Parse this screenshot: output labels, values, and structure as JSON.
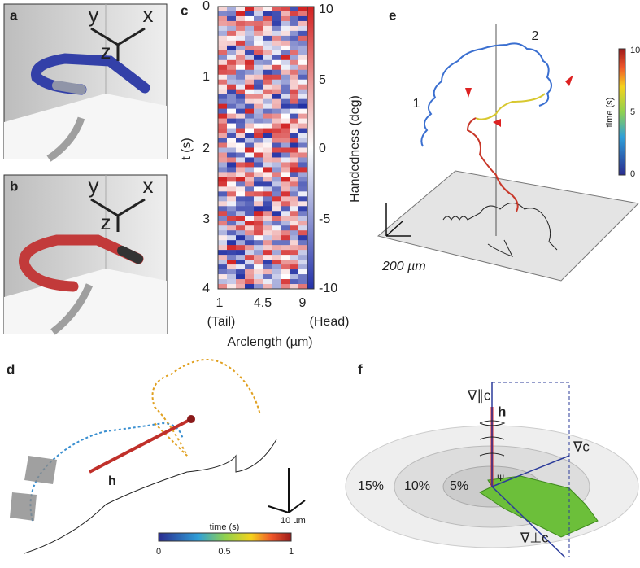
{
  "panels": {
    "a": {
      "label": "a",
      "axes": [
        "y",
        "z",
        "x"
      ]
    },
    "b": {
      "label": "b",
      "axes": [
        "y",
        "z",
        "x"
      ]
    },
    "c": {
      "label": "c",
      "y_label": "t (s)",
      "y_ticks": [
        "0",
        "1",
        "2",
        "3",
        "4"
      ],
      "x_ticks": [
        "1",
        "4.5",
        "9"
      ],
      "x_ends": [
        "(Tail)",
        "(Head)"
      ],
      "x_label": "Arclength (µm)",
      "colorbar_label": "Handedness (deg)",
      "colorbar_ticks": [
        "10",
        "5",
        "0",
        "-5",
        "-10"
      ]
    },
    "d": {
      "label": "d",
      "vector": "h",
      "scale": "10 µm",
      "colorbar_title": "time (s)",
      "colorbar_ticks": [
        "0",
        "0.5",
        "1"
      ]
    },
    "e": {
      "label": "e",
      "track_labels": [
        "1",
        "2"
      ],
      "scale": "200 µm",
      "colorbar_title": "time (s)",
      "colorbar_ticks": [
        "10",
        "5",
        "0"
      ]
    },
    "f": {
      "label": "f",
      "rings": [
        "15%",
        "10%",
        "5%"
      ],
      "vectors": [
        "∇∥c",
        "h",
        "∇c",
        "∇⊥c"
      ],
      "angle": "Ψ"
    }
  }
}
